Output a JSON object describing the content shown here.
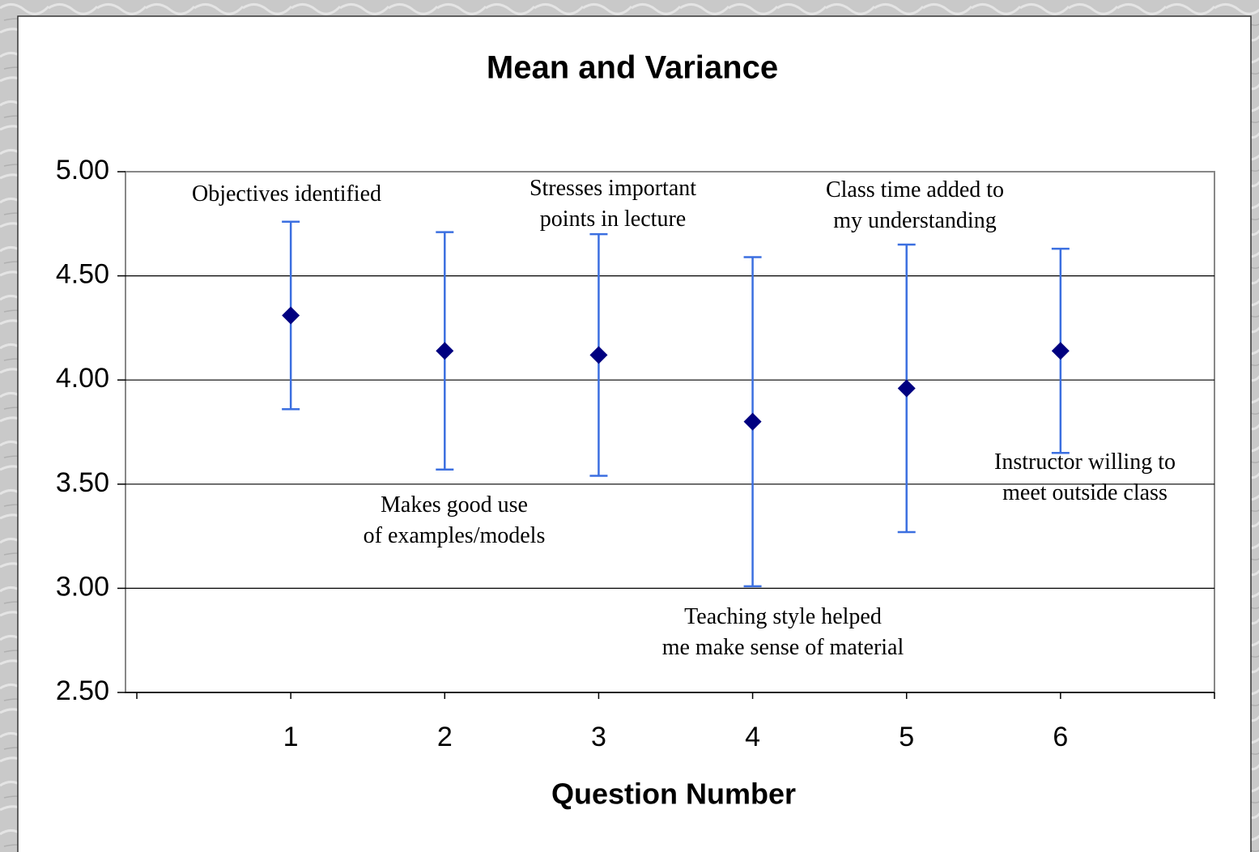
{
  "chart_data": {
    "type": "errorbar",
    "title": "Mean and Variance",
    "x_label": "Question Number",
    "x": [
      1,
      2,
      3,
      4,
      5,
      6
    ],
    "values": [
      4.31,
      4.14,
      4.12,
      3.8,
      3.96,
      4.14
    ],
    "errors": [
      0.45,
      0.57,
      0.58,
      0.79,
      0.69,
      0.49
    ],
    "marker_color": "#000080",
    "error_color": "#3b6fe0",
    "xlim": [
      0,
      7
    ],
    "xticks": [
      1,
      2,
      3,
      4,
      5,
      6
    ],
    "ylim": [
      2.5,
      5
    ],
    "yticks": [
      {
        "value": 2.5,
        "label": "2.50"
      },
      {
        "value": 3,
        "label": "3.00"
      },
      {
        "value": 3.5,
        "label": "3.50"
      },
      {
        "value": 4,
        "label": "4.00"
      },
      {
        "value": 4.5,
        "label": "4.50"
      },
      {
        "value": 5,
        "label": "5.00"
      }
    ],
    "grid": true,
    "annotations": [
      [
        "Objectives identified"
      ],
      [
        "Makes good use",
        "of examples/models"
      ],
      [
        "Stresses important",
        "points in lecture"
      ],
      [
        "Teaching style helped",
        "me make sense of material"
      ],
      [
        "Class time added to",
        "my understanding"
      ],
      [
        "Instructor willing to",
        "meet outside class"
      ]
    ]
  }
}
